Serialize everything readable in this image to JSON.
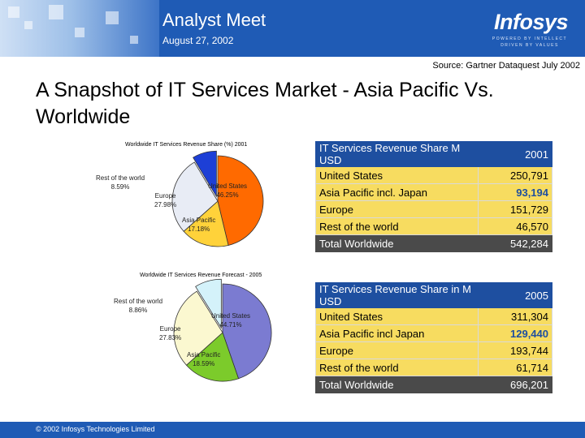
{
  "header": {
    "title": "Analyst Meet",
    "date": "August 27, 2002",
    "logo": "Infosys",
    "logo_tagline": "POWERED BY INTELLECT DRIVEN BY VALUES"
  },
  "source": "Source: Gartner Dataquest July 2002",
  "slide_title": "A Snapshot of IT Services Market - Asia Pacific Vs. Worldwide",
  "footer": "© 2002 Infosys Technologies Limited",
  "colors": {
    "brand_blue": "#1f5bb5",
    "table_header": "#1e4fa0",
    "table_body": "#f7dc60",
    "table_total": "#4a4a4a"
  },
  "chart_data": [
    {
      "type": "pie",
      "title": "Worldwide IT Services Revenue Share (%)  2001",
      "slices": [
        {
          "label": "United States",
          "value": 46.25,
          "value_label": "46.25%",
          "color": "#ff6a00"
        },
        {
          "label": "Asia Pacific",
          "value": 17.18,
          "value_label": "17.18%",
          "color": "#ffd23a"
        },
        {
          "label": "Europe",
          "value": 27.98,
          "value_label": "27.98%",
          "color": "#e8ecf5"
        },
        {
          "label": "Rest of the world",
          "value": 8.59,
          "value_label": "8.59%",
          "color": "#1d3fd6"
        }
      ]
    },
    {
      "type": "pie",
      "title": "Worldwide IT Services Revenue Forecast - 2005",
      "slices": [
        {
          "label": "United States",
          "value": 44.71,
          "value_label": "44.71%",
          "color": "#7b7bd1"
        },
        {
          "label": "Asia Pacific",
          "value": 18.59,
          "value_label": "18.59%",
          "color": "#7ccb2b"
        },
        {
          "label": "Europe",
          "value": 27.83,
          "value_label": "27.83%",
          "color": "#fbf8d0"
        },
        {
          "label": "Rest of the world",
          "value": 8.86,
          "value_label": "8.86%",
          "color": "#d4f2fa"
        }
      ]
    },
    {
      "type": "table",
      "header": [
        "IT Services Revenue Share M USD",
        "2001"
      ],
      "rows": [
        [
          "United States",
          "250,791"
        ],
        [
          "Asia Pacific incl. Japan",
          "93,194"
        ],
        [
          "Europe",
          "151,729"
        ],
        [
          "Rest of the world",
          "46,570"
        ]
      ],
      "total": [
        "Total Worldwide",
        "542,284"
      ]
    },
    {
      "type": "table",
      "header": [
        "IT Services Revenue Share in M USD",
        "2005"
      ],
      "rows": [
        [
          "United States",
          "311,304"
        ],
        [
          "Asia Pacific incl Japan",
          "129,440"
        ],
        [
          "Europe",
          "193,744"
        ],
        [
          "Rest of the world",
          "61,714"
        ]
      ],
      "total": [
        "Total Worldwide",
        "696,201"
      ]
    }
  ]
}
